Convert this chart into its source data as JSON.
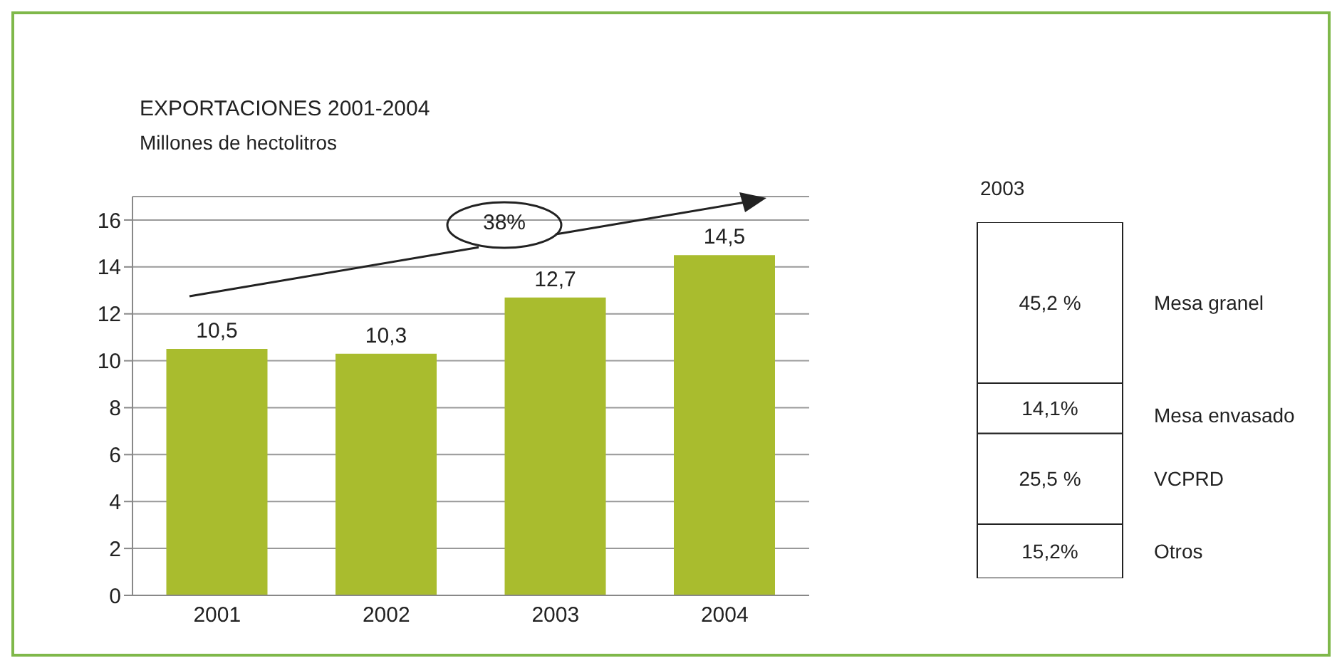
{
  "chart_data": [
    {
      "type": "bar",
      "title": "EXPORTACIONES  2001-2004",
      "ylabel": "Millones de hectolitros",
      "categories": [
        "2001",
        "2002",
        "2003",
        "2004"
      ],
      "values": [
        10.5,
        10.3,
        12.7,
        14.5
      ],
      "value_labels": [
        "10,5",
        "10,3",
        "12,7",
        "14,5"
      ],
      "color": "#a9bc2e",
      "ylim": [
        0,
        17
      ],
      "yticks": [
        0,
        2,
        4,
        6,
        8,
        10,
        12,
        14,
        16
      ],
      "grid": "y",
      "annotations": [
        "38%"
      ]
    },
    {
      "type": "bar",
      "title": "2003",
      "categories": [
        null
      ],
      "stacked": true,
      "series": [
        {
          "name": "Otros",
          "color": "#ffffff",
          "values": [
            15.2
          ],
          "value_labels": [
            "15,2%"
          ]
        },
        {
          "name": "VCPRD",
          "color": "#ffffff",
          "values": [
            25.5
          ],
          "value_labels": [
            "25,5 %"
          ]
        },
        {
          "name": "Mesa envasado",
          "color": "#ffffff",
          "values": [
            14.1
          ],
          "value_labels": [
            "14,1%"
          ]
        },
        {
          "name": "Mesa granel",
          "color": "#ffffff",
          "values": [
            45.2
          ],
          "value_labels": [
            "45,2 %"
          ]
        }
      ]
    }
  ]
}
